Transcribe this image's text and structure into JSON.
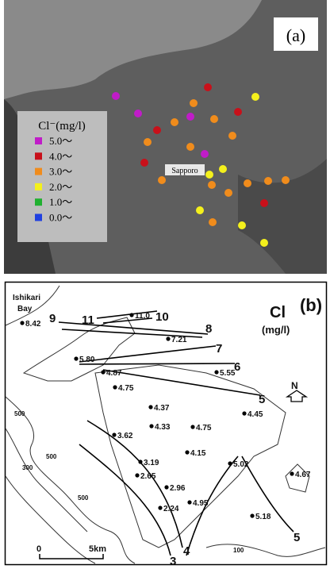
{
  "panel_a": {
    "label": "(a)",
    "city": "Sapporo",
    "legend": {
      "title": "Cl⁻(mg/l)",
      "items": [
        {
          "label": "5.0〜",
          "color": "#c01cc8"
        },
        {
          "label": "4.0〜",
          "color": "#c8101a"
        },
        {
          "label": "3.0〜",
          "color": "#f08c1c"
        },
        {
          "label": "2.0〜",
          "color": "#f4f01c"
        },
        {
          "label": "1.0〜",
          "color": "#20b030"
        },
        {
          "label": "0.0〜",
          "color": "#2040e0"
        }
      ]
    }
  },
  "panel_b": {
    "label": "(b)",
    "bay": [
      "Ishikari",
      "Bay"
    ],
    "title": [
      "Cl",
      "(mg/l)"
    ],
    "north": "N",
    "contours": [
      "11",
      "10",
      "9",
      "8",
      "7",
      "6",
      "5",
      "4",
      "3",
      "5"
    ],
    "points": [
      "11.0",
      "8.42",
      "7.21",
      "5.80",
      "4.87",
      "5.55",
      "4.75",
      "4.37",
      "4.45",
      "3.62",
      "4.33",
      "4.75",
      "4.15",
      "3.19",
      "2.65",
      "5.02",
      "4.67",
      "2.96",
      "4.95",
      "2.24",
      "5.18"
    ],
    "elevations": [
      "500",
      "300",
      "500",
      "500",
      "100"
    ],
    "scale": [
      "0",
      "5km"
    ]
  }
}
